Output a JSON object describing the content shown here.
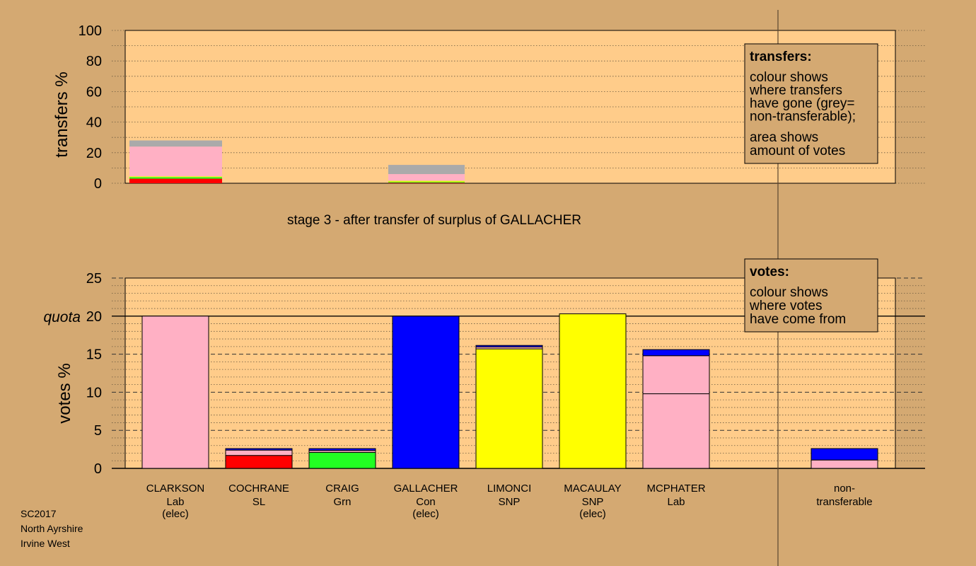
{
  "chart_data": {
    "type": "bar",
    "colors": {
      "background": "#d4a972",
      "plot_background": "#ffcc8a",
      "Lab": "#ffb0c4",
      "SL": "#ff0000",
      "Grn": "#22ff22",
      "Con": "#0000ff",
      "SNP": "#ffff00",
      "nontransferable": "#aaaaaa"
    },
    "top": {
      "ylabel": "transfers %",
      "yticks": [
        "0",
        "20",
        "40",
        "60",
        "80",
        "100"
      ],
      "ylim": [
        0,
        100
      ],
      "grid": true,
      "bars": [
        {
          "group": 0,
          "segments": [
            {
              "party": "SL",
              "value": 3.0
            },
            {
              "party": "Grn",
              "value": 1.0
            },
            {
              "party": "SNP",
              "value": 0.5
            },
            {
              "party": "Lab",
              "value": 19.5
            },
            {
              "party": "nontransferable",
              "value": 4.0
            }
          ]
        },
        {
          "group": 1,
          "segments": [
            {
              "party": "SL",
              "value": 0.4
            },
            {
              "party": "Grn",
              "value": 0.6
            },
            {
              "party": "SNP",
              "value": 0.6
            },
            {
              "party": "Lab",
              "value": 4.4
            },
            {
              "party": "nontransferable",
              "value": 6.0
            }
          ]
        }
      ]
    },
    "stage_title": "stage 3 - after transfer of surplus of GALLACHER",
    "bottom": {
      "ylabel": "votes %",
      "yticks": [
        "0",
        "5",
        "10",
        "15",
        "20",
        "25"
      ],
      "ylim": [
        0,
        25
      ],
      "quota": 20,
      "quota_label": "quota",
      "grid": true,
      "candidates": [
        {
          "name": "CLARKSON",
          "party": "Lab",
          "status": "(elec)",
          "segments": [
            {
              "party": "Lab",
              "value": 20.0
            }
          ]
        },
        {
          "name": "COCHRANE",
          "party": "SL",
          "status": "",
          "segments": [
            {
              "party": "SL",
              "value": 1.7
            },
            {
              "party": "Lab",
              "value": 0.7
            },
            {
              "party": "Con",
              "value": 0.2
            }
          ]
        },
        {
          "name": "CRAIG",
          "party": "Grn",
          "status": "",
          "segments": [
            {
              "party": "Grn",
              "value": 2.1
            },
            {
              "party": "Lab",
              "value": 0.25
            },
            {
              "party": "Con",
              "value": 0.25
            }
          ]
        },
        {
          "name": "GALLACHER",
          "party": "Con",
          "status": "(elec)",
          "segments": [
            {
              "party": "Con",
              "value": 20.0
            }
          ]
        },
        {
          "name": "LIMONCI",
          "party": "SNP",
          "status": "",
          "segments": [
            {
              "party": "SNP",
              "value": 15.7
            },
            {
              "party": "Lab",
              "value": 0.25
            },
            {
              "party": "Con",
              "value": 0.2
            }
          ]
        },
        {
          "name": "MACAULAY",
          "party": "SNP",
          "status": "(elec)",
          "segments": [
            {
              "party": "SNP",
              "value": 20.3
            }
          ]
        },
        {
          "name": "MCPHATER",
          "party": "Lab",
          "status": "",
          "segments": [
            {
              "party": "Lab",
              "value": 9.8
            },
            {
              "party": "Lab",
              "value": 5.0
            },
            {
              "party": "Con",
              "value": 0.8
            }
          ]
        }
      ],
      "nontransferable": {
        "label_line1": "non-",
        "label_line2": "transferable",
        "segments": [
          {
            "party": "Lab",
            "value": 1.1
          },
          {
            "party": "Con",
            "value": 1.5
          }
        ]
      }
    },
    "legend_transfers": {
      "title": "transfers:",
      "lines1": [
        "colour shows",
        "where transfers",
        "have gone (grey=",
        "non-transferable);"
      ],
      "lines2": [
        "area shows",
        "amount of votes"
      ]
    },
    "legend_votes": {
      "title": "votes:",
      "lines": [
        "colour shows",
        "where votes",
        "have come from"
      ]
    }
  },
  "footer": {
    "line1": "SC2017",
    "line2": "North Ayrshire",
    "line3": "Irvine West"
  }
}
